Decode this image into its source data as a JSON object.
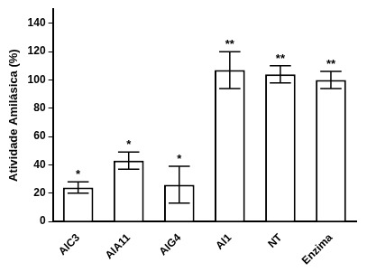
{
  "chart_data": {
    "type": "bar",
    "y_label": "Atividade Amilásica (%)",
    "categories": [
      "AIC3",
      "AIA11",
      "AIG4",
      "AI1",
      "NT",
      "Enzima"
    ],
    "values": [
      24,
      43,
      26,
      107,
      104,
      100
    ],
    "errors": [
      4,
      6,
      13,
      13,
      6,
      6
    ],
    "annotations": [
      "*",
      "*",
      "*",
      "**",
      "**",
      "**"
    ],
    "color": "#ffffff",
    "ylim": [
      0,
      150
    ],
    "yticks": [
      0,
      20,
      40,
      60,
      80,
      100,
      120,
      140
    ],
    "grid": false
  }
}
